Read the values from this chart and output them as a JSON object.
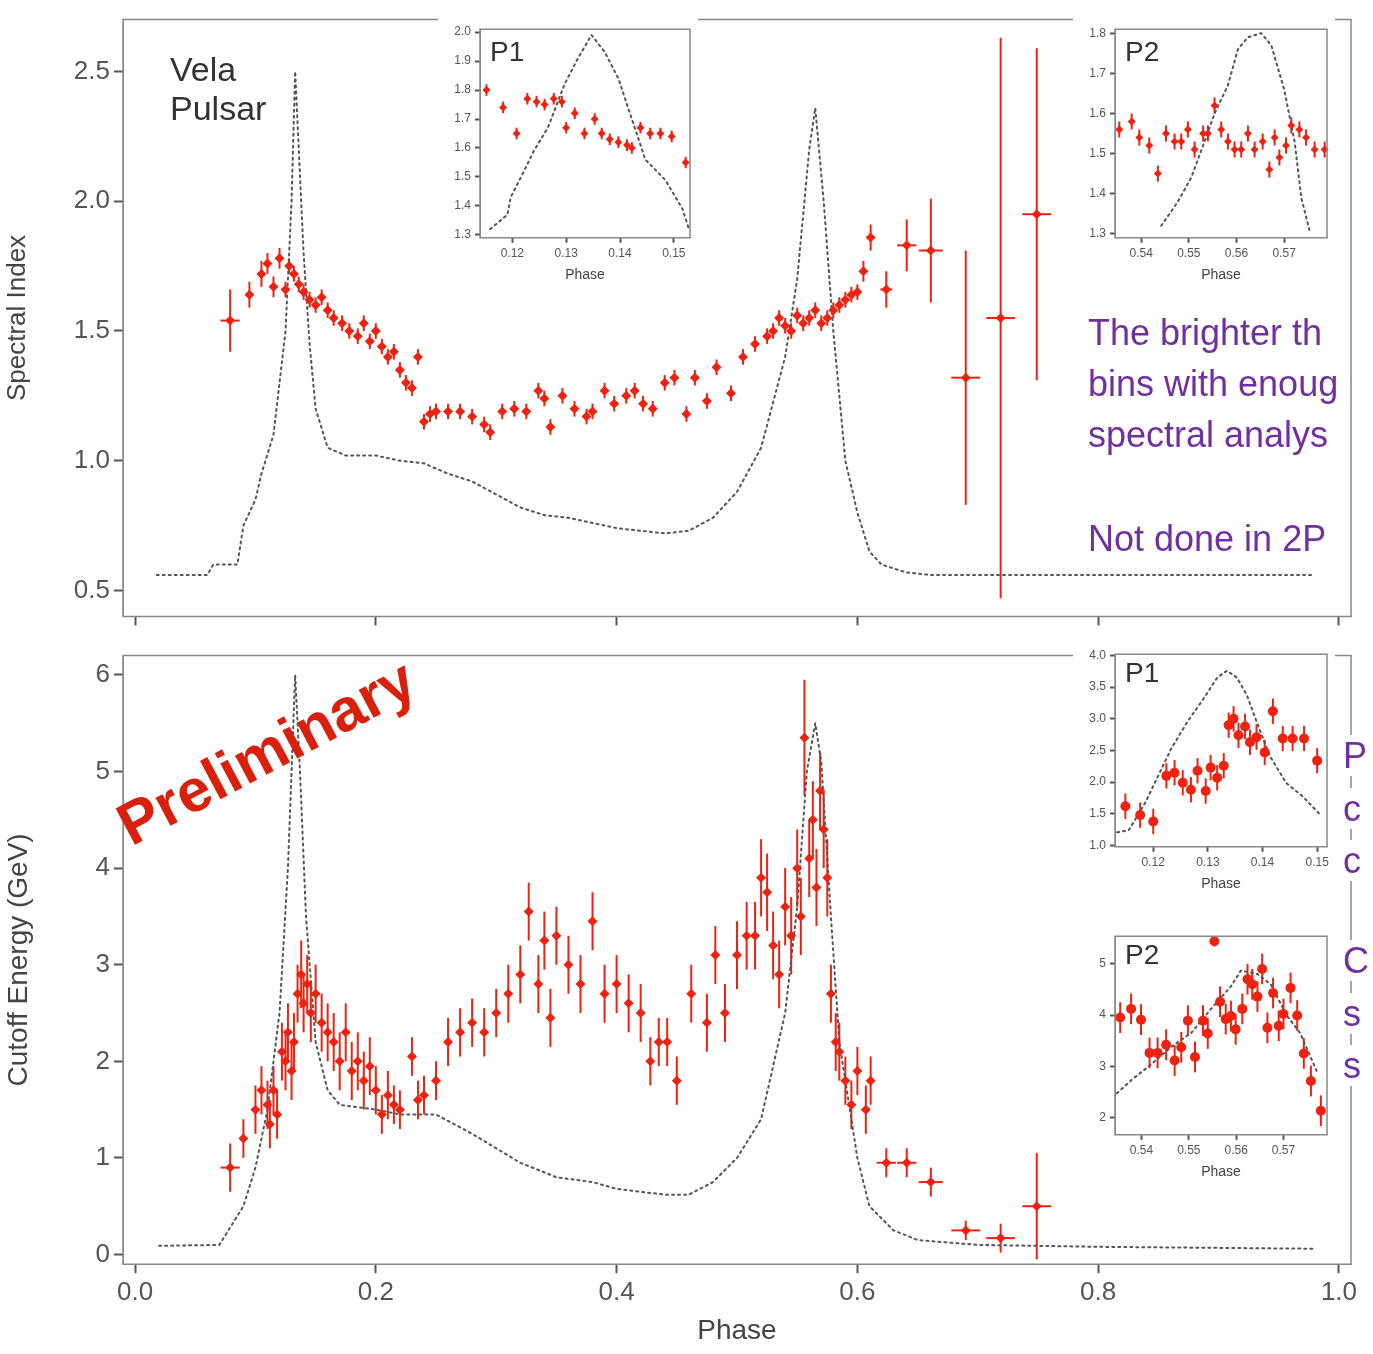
{
  "chart_data": [
    {
      "type": "scatter",
      "ylabel": "Spectral Index",
      "xlim": [
        -0.01,
        1.01
      ],
      "ylim": [
        0.4,
        2.7
      ],
      "xticks": [
        0,
        0.2,
        0.4,
        0.6,
        0.8,
        1
      ],
      "yticks": [
        0.5,
        {
          "value": 1,
          "label": "1.0"
        },
        1.5,
        {
          "value": 2,
          "label": "2.0"
        },
        2.5
      ],
      "tick_labels": "y",
      "annotations": [
        "Vela Pulsar",
        "The brighter th",
        "bins with enoug",
        "spectral analys",
        "Not done in 2P"
      ],
      "series": [
        {
          "type": "scatter",
          "color": "#ee2211",
          "marker": "diamond",
          "x": [
            0.079,
            0.095,
            0.105,
            0.11,
            0.115,
            0.12,
            0.125,
            0.128,
            0.132,
            0.136,
            0.14,
            0.145,
            0.15,
            0.155,
            0.16,
            0.165,
            0.172,
            0.178,
            0.185,
            0.19,
            0.195,
            0.2,
            0.205,
            0.21,
            0.215,
            0.22,
            0.225,
            0.23,
            0.235,
            0.24,
            0.245,
            0.25,
            0.26,
            0.27,
            0.28,
            0.29,
            0.295,
            0.305,
            0.315,
            0.325,
            0.335,
            0.34,
            0.345,
            0.355,
            0.365,
            0.375,
            0.38,
            0.39,
            0.398,
            0.408,
            0.415,
            0.422,
            0.43,
            0.44,
            0.448,
            0.458,
            0.465,
            0.475,
            0.483,
            0.495,
            0.505,
            0.515,
            0.525,
            0.53,
            0.535,
            0.54,
            0.545,
            0.55,
            0.555,
            0.56,
            0.565,
            0.57,
            0.575,
            0.58,
            0.585,
            0.59,
            0.595,
            0.6,
            0.605,
            0.611,
            0.624,
            0.641,
            0.661,
            0.69,
            0.719,
            0.749
          ],
          "values": [
            1.54,
            1.64,
            1.72,
            1.76,
            1.67,
            1.78,
            1.66,
            1.75,
            1.72,
            1.68,
            1.65,
            1.62,
            1.6,
            1.63,
            1.58,
            1.55,
            1.53,
            1.5,
            1.48,
            1.53,
            1.46,
            1.5,
            1.44,
            1.4,
            1.42,
            1.35,
            1.3,
            1.28,
            1.4,
            1.15,
            1.18,
            1.19,
            1.19,
            1.19,
            1.17,
            1.14,
            1.11,
            1.19,
            1.2,
            1.19,
            1.27,
            1.24,
            1.13,
            1.25,
            1.2,
            1.17,
            1.19,
            1.27,
            1.22,
            1.25,
            1.27,
            1.22,
            1.2,
            1.3,
            1.32,
            1.18,
            1.32,
            1.23,
            1.36,
            1.26,
            1.4,
            1.45,
            1.48,
            1.5,
            1.55,
            1.52,
            1.5,
            1.56,
            1.53,
            1.55,
            1.58,
            1.53,
            1.55,
            1.58,
            1.6,
            1.62,
            1.64,
            1.65,
            1.73,
            1.86,
            1.66,
            1.83,
            1.81,
            1.32,
            1.55,
            1.95
          ],
          "errors": [
            0.12,
            0.05,
            0.05,
            0.04,
            0.04,
            0.04,
            0.03,
            0.03,
            0.03,
            0.03,
            0.03,
            0.03,
            0.03,
            0.03,
            0.03,
            0.03,
            0.03,
            0.03,
            0.03,
            0.03,
            0.03,
            0.03,
            0.03,
            0.03,
            0.03,
            0.03,
            0.03,
            0.03,
            0.03,
            0.03,
            0.03,
            0.03,
            0.03,
            0.03,
            0.03,
            0.03,
            0.03,
            0.03,
            0.03,
            0.03,
            0.03,
            0.03,
            0.03,
            0.03,
            0.03,
            0.03,
            0.03,
            0.03,
            0.03,
            0.03,
            0.03,
            0.03,
            0.03,
            0.03,
            0.03,
            0.03,
            0.03,
            0.03,
            0.03,
            0.03,
            0.03,
            0.03,
            0.03,
            0.03,
            0.03,
            0.03,
            0.03,
            0.03,
            0.03,
            0.03,
            0.03,
            0.03,
            0.03,
            0.03,
            0.03,
            0.03,
            0.03,
            0.03,
            0.04,
            0.05,
            0.07,
            0.1,
            0.2,
            0.49,
            1.08,
            0.64
          ],
          "xerrors": [
            0.008,
            0.003,
            0.003,
            0.003,
            0.003,
            0.003,
            0.003,
            0.003,
            0.003,
            0.003,
            0.003,
            0.003,
            0.003,
            0.003,
            0.003,
            0.003,
            0.003,
            0.003,
            0.003,
            0.003,
            0.003,
            0.003,
            0.003,
            0.003,
            0.003,
            0.003,
            0.003,
            0.003,
            0.003,
            0.003,
            0.003,
            0.003,
            0.003,
            0.003,
            0.003,
            0.003,
            0.003,
            0.003,
            0.003,
            0.003,
            0.003,
            0.003,
            0.003,
            0.003,
            0.003,
            0.003,
            0.003,
            0.003,
            0.003,
            0.003,
            0.003,
            0.003,
            0.003,
            0.003,
            0.003,
            0.003,
            0.003,
            0.003,
            0.003,
            0.003,
            0.003,
            0.003,
            0.003,
            0.003,
            0.003,
            0.003,
            0.003,
            0.003,
            0.003,
            0.003,
            0.003,
            0.003,
            0.003,
            0.003,
            0.003,
            0.003,
            0.003,
            0.003,
            0.003,
            0.003,
            0.005,
            0.008,
            0.01,
            0.012,
            0.012,
            0.012
          ]
        },
        {
          "type": "line",
          "color": "#555555",
          "marker": "none",
          "line_style": "dotted",
          "x": [
            0.018,
            0.06,
            0.065,
            0.085,
            0.09,
            0.1,
            0.105,
            0.115,
            0.125,
            0.13,
            0.133,
            0.14,
            0.145,
            0.15,
            0.16,
            0.175,
            0.2,
            0.22,
            0.24,
            0.26,
            0.28,
            0.3,
            0.32,
            0.34,
            0.36,
            0.38,
            0.4,
            0.42,
            0.44,
            0.46,
            0.48,
            0.5,
            0.52,
            0.54,
            0.55,
            0.56,
            0.565,
            0.572,
            0.58,
            0.59,
            0.6,
            0.61,
            0.62,
            0.64,
            0.66,
            0.7,
            0.8,
            0.98
          ],
          "values": [
            0.56,
            0.56,
            0.6,
            0.6,
            0.75,
            0.85,
            0.95,
            1.1,
            1.5,
            2.0,
            2.5,
            1.8,
            1.45,
            1.2,
            1.05,
            1.02,
            1.02,
            1.0,
            0.99,
            0.95,
            0.92,
            0.87,
            0.82,
            0.79,
            0.78,
            0.76,
            0.74,
            0.73,
            0.72,
            0.73,
            0.78,
            0.88,
            1.05,
            1.4,
            1.7,
            2.2,
            2.36,
            2.0,
            1.5,
            1.0,
            0.8,
            0.65,
            0.6,
            0.57,
            0.56,
            0.56,
            0.56,
            0.56
          ]
        }
      ]
    },
    {
      "type": "scatter",
      "xlabel": "Phase",
      "xlim": [
        0.114,
        0.153
      ],
      "ylim": [
        1.29,
        2.01
      ],
      "xticks": [
        0.12,
        0.13,
        0.14,
        0.15
      ],
      "yticks": [
        1.3,
        1.4,
        1.5,
        1.6,
        1.7,
        1.8,
        1.9,
        {
          "value": 2,
          "label": "2.0"
        }
      ],
      "annotations": [
        "P1"
      ],
      "series": [
        {
          "type": "scatter",
          "color": "#ee2211",
          "marker": "diamond",
          "x": [
            0.1152,
            0.1183,
            0.1208,
            0.1228,
            0.1245,
            0.126,
            0.1277,
            0.1292,
            0.13,
            0.1316,
            0.1334,
            0.1353,
            0.1366,
            0.1381,
            0.1397,
            0.1413,
            0.1422,
            0.1438,
            0.1456,
            0.1475,
            0.1496,
            0.1522
          ],
          "values": [
            1.8,
            1.74,
            1.65,
            1.77,
            1.76,
            1.75,
            1.77,
            1.76,
            1.67,
            1.72,
            1.65,
            1.7,
            1.65,
            1.63,
            1.62,
            1.61,
            1.6,
            1.67,
            1.65,
            1.65,
            1.64,
            1.55
          ],
          "errors": [
            0.02,
            0.02,
            0.02,
            0.02,
            0.02,
            0.02,
            0.02,
            0.02,
            0.02,
            0.02,
            0.02,
            0.02,
            0.02,
            0.02,
            0.02,
            0.02,
            0.02,
            0.02,
            0.02,
            0.02,
            0.02,
            0.02
          ]
        },
        {
          "type": "line",
          "color": "#555555",
          "marker": "none",
          "line_style": "dotted",
          "x": [
            0.1159,
            0.1191,
            0.1197,
            0.1219,
            0.124,
            0.1266,
            0.1297,
            0.1322,
            0.1347,
            0.1372,
            0.1397,
            0.1422,
            0.1447,
            0.1484,
            0.1516,
            0.1528
          ],
          "values": [
            1.32,
            1.37,
            1.43,
            1.51,
            1.59,
            1.67,
            1.82,
            1.91,
            1.99,
            1.93,
            1.84,
            1.7,
            1.56,
            1.49,
            1.39,
            1.32
          ]
        }
      ]
    },
    {
      "type": "scatter",
      "xlabel": "Phase",
      "xlim": [
        0.5345,
        0.579
      ],
      "ylim": [
        1.29,
        1.81
      ],
      "xticks": [
        0.54,
        0.55,
        0.56,
        0.57
      ],
      "yticks": [
        1.3,
        1.4,
        1.5,
        1.6,
        1.7,
        1.8
      ],
      "annotations": [
        "P2"
      ],
      "series": [
        {
          "type": "scatter",
          "color": "#ee2211",
          "marker": "diamond",
          "x": [
            0.5354,
            0.538,
            0.5396,
            0.5417,
            0.5435,
            0.5452,
            0.547,
            0.5484,
            0.5498,
            0.5512,
            0.553,
            0.554,
            0.5554,
            0.5568,
            0.5582,
            0.5596,
            0.561,
            0.5624,
            0.5638,
            0.5655,
            0.5669,
            0.568,
            0.569,
            0.5704,
            0.5715,
            0.5732,
            0.5746,
            0.5764,
            0.5785
          ],
          "values": [
            1.56,
            1.58,
            1.54,
            1.52,
            1.45,
            1.55,
            1.53,
            1.53,
            1.56,
            1.51,
            1.55,
            1.55,
            1.62,
            1.56,
            1.53,
            1.51,
            1.51,
            1.55,
            1.51,
            1.53,
            1.46,
            1.54,
            1.49,
            1.52,
            1.57,
            1.56,
            1.54,
            1.51,
            1.51
          ],
          "errors": [
            0.02,
            0.02,
            0.02,
            0.02,
            0.02,
            0.02,
            0.02,
            0.02,
            0.02,
            0.02,
            0.02,
            0.02,
            0.02,
            0.02,
            0.02,
            0.02,
            0.02,
            0.02,
            0.02,
            0.02,
            0.02,
            0.02,
            0.02,
            0.02,
            0.02,
            0.02,
            0.02,
            0.02,
            0.02
          ]
        },
        {
          "type": "line",
          "color": "#555555",
          "marker": "none",
          "line_style": "dotted",
          "x": [
            0.5442,
            0.5477,
            0.5505,
            0.5533,
            0.5554,
            0.5582,
            0.5603,
            0.5624,
            0.5652,
            0.5673,
            0.57,
            0.5722,
            0.5736,
            0.5753
          ],
          "values": [
            1.32,
            1.38,
            1.44,
            1.53,
            1.6,
            1.67,
            1.76,
            1.79,
            1.8,
            1.77,
            1.66,
            1.53,
            1.39,
            1.31
          ]
        }
      ]
    },
    {
      "type": "scatter",
      "xlabel": "Phase",
      "ylabel": "Cutoff Energy (GeV)",
      "xlim": [
        -0.01,
        1.01
      ],
      "ylim": [
        -0.1,
        6.2
      ],
      "xticks": [
        {
          "value": 0,
          "label": "0.0"
        },
        0.2,
        0.4,
        0.6,
        0.8,
        {
          "value": 1,
          "label": "1.0"
        }
      ],
      "yticks": [
        0,
        1,
        2,
        3,
        4,
        5,
        6
      ],
      "annotations": [
        "Preliminary",
        "P",
        "c",
        "c",
        "C",
        "s",
        "s"
      ],
      "series": [
        {
          "type": "scatter",
          "color": "#ee2211",
          "marker": "diamond",
          "x": [
            0.079,
            0.09,
            0.1,
            0.105,
            0.11,
            0.112,
            0.115,
            0.118,
            0.122,
            0.125,
            0.127,
            0.13,
            0.132,
            0.135,
            0.138,
            0.14,
            0.143,
            0.146,
            0.15,
            0.155,
            0.16,
            0.165,
            0.17,
            0.175,
            0.18,
            0.185,
            0.19,
            0.195,
            0.2,
            0.205,
            0.21,
            0.215,
            0.22,
            0.23,
            0.235,
            0.24,
            0.25,
            0.26,
            0.27,
            0.28,
            0.29,
            0.3,
            0.31,
            0.32,
            0.327,
            0.335,
            0.34,
            0.345,
            0.35,
            0.36,
            0.37,
            0.38,
            0.39,
            0.4,
            0.41,
            0.42,
            0.428,
            0.435,
            0.442,
            0.45,
            0.462,
            0.475,
            0.482,
            0.49,
            0.5,
            0.508,
            0.515,
            0.52,
            0.525,
            0.53,
            0.535,
            0.54,
            0.545,
            0.55,
            0.553,
            0.556,
            0.56,
            0.563,
            0.566,
            0.569,
            0.572,
            0.575,
            0.578,
            0.582,
            0.585,
            0.59,
            0.595,
            0.6,
            0.607,
            0.611,
            0.624,
            0.641,
            0.661,
            0.69,
            0.719,
            0.749
          ],
          "values": [
            0.9,
            1.2,
            1.5,
            1.7,
            1.55,
            1.35,
            1.7,
            1.45,
            2.1,
            2.0,
            2.3,
            1.9,
            2.2,
            2.7,
            2.9,
            2.6,
            2.8,
            2.5,
            2.7,
            2.4,
            2.3,
            2.2,
            2.0,
            2.3,
            1.9,
            2.0,
            1.8,
            1.95,
            1.7,
            1.45,
            1.65,
            1.55,
            1.5,
            2.05,
            1.6,
            1.65,
            1.8,
            2.2,
            2.3,
            2.4,
            2.3,
            2.5,
            2.7,
            2.9,
            3.55,
            2.8,
            3.25,
            2.45,
            3.3,
            3.0,
            2.8,
            3.45,
            2.7,
            2.8,
            2.6,
            2.5,
            2.0,
            2.2,
            2.2,
            1.8,
            2.7,
            2.4,
            3.1,
            2.5,
            3.1,
            3.3,
            3.3,
            3.9,
            3.75,
            3.2,
            2.9,
            3.6,
            3.3,
            4.0,
            3.5,
            5.35,
            4.1,
            4.5,
            3.8,
            4.8,
            4.4,
            3.9,
            2.7,
            2.2,
            2.1,
            1.8,
            1.55,
            1.9,
            1.5,
            1.8,
            0.95,
            0.95,
            0.75,
            0.25,
            0.17,
            0.5
          ],
          "errors": [
            0.25,
            0.2,
            0.25,
            0.25,
            0.25,
            0.25,
            0.25,
            0.25,
            0.3,
            0.3,
            0.3,
            0.3,
            0.3,
            0.3,
            0.35,
            0.3,
            0.3,
            0.3,
            0.3,
            0.3,
            0.3,
            0.3,
            0.3,
            0.3,
            0.3,
            0.3,
            0.3,
            0.3,
            0.25,
            0.2,
            0.25,
            0.2,
            0.2,
            0.2,
            0.2,
            0.2,
            0.2,
            0.25,
            0.25,
            0.25,
            0.25,
            0.25,
            0.3,
            0.3,
            0.3,
            0.3,
            0.3,
            0.3,
            0.3,
            0.3,
            0.3,
            0.3,
            0.3,
            0.3,
            0.3,
            0.3,
            0.25,
            0.25,
            0.25,
            0.25,
            0.3,
            0.3,
            0.3,
            0.3,
            0.35,
            0.35,
            0.35,
            0.4,
            0.4,
            0.35,
            0.35,
            0.4,
            0.4,
            0.4,
            0.4,
            0.6,
            0.4,
            0.4,
            0.4,
            0.4,
            0.4,
            0.4,
            0.3,
            0.3,
            0.3,
            0.25,
            0.25,
            0.25,
            0.25,
            0.25,
            0.15,
            0.15,
            0.15,
            0.1,
            0.15,
            0.55
          ],
          "xerrors": [
            0.008,
            0.003,
            0.003,
            0.003,
            0.003,
            0.003,
            0.003,
            0.003,
            0.003,
            0.003,
            0.003,
            0.003,
            0.003,
            0.003,
            0.003,
            0.003,
            0.003,
            0.003,
            0.003,
            0.003,
            0.003,
            0.003,
            0.003,
            0.003,
            0.003,
            0.003,
            0.003,
            0.003,
            0.003,
            0.003,
            0.003,
            0.003,
            0.003,
            0.003,
            0.003,
            0.003,
            0.003,
            0.003,
            0.003,
            0.003,
            0.003,
            0.003,
            0.003,
            0.003,
            0.003,
            0.003,
            0.003,
            0.003,
            0.003,
            0.003,
            0.003,
            0.003,
            0.003,
            0.003,
            0.003,
            0.003,
            0.003,
            0.003,
            0.003,
            0.003,
            0.003,
            0.003,
            0.003,
            0.003,
            0.003,
            0.003,
            0.003,
            0.003,
            0.003,
            0.003,
            0.003,
            0.003,
            0.003,
            0.003,
            0.003,
            0.003,
            0.003,
            0.003,
            0.003,
            0.003,
            0.003,
            0.003,
            0.003,
            0.003,
            0.003,
            0.003,
            0.003,
            0.003,
            0.003,
            0.003,
            0.008,
            0.008,
            0.01,
            0.012,
            0.012,
            0.012
          ]
        },
        {
          "type": "line",
          "color": "#555555",
          "marker": "none",
          "line_style": "dotted",
          "x": [
            0.02,
            0.07,
            0.075,
            0.09,
            0.1,
            0.11,
            0.12,
            0.127,
            0.133,
            0.137,
            0.142,
            0.15,
            0.16,
            0.17,
            0.2,
            0.22,
            0.25,
            0.28,
            0.3,
            0.32,
            0.35,
            0.38,
            0.4,
            0.44,
            0.46,
            0.48,
            0.5,
            0.52,
            0.54,
            0.55,
            0.558,
            0.565,
            0.57,
            0.578,
            0.585,
            0.6,
            0.61,
            0.63,
            0.65,
            0.7,
            0.8,
            0.98
          ],
          "values": [
            0.09,
            0.1,
            0.2,
            0.5,
            0.9,
            1.5,
            2.5,
            4.0,
            6.0,
            5.0,
            3.5,
            2.2,
            1.7,
            1.55,
            1.5,
            1.45,
            1.45,
            1.25,
            1.1,
            0.95,
            0.8,
            0.75,
            0.68,
            0.62,
            0.62,
            0.75,
            1.0,
            1.4,
            2.5,
            3.6,
            5.0,
            5.5,
            5.1,
            3.5,
            2.2,
            1.0,
            0.5,
            0.25,
            0.15,
            0.1,
            0.08,
            0.06
          ]
        }
      ]
    },
    {
      "type": "scatter",
      "xlabel": "Phase",
      "xlim": [
        0.113,
        0.1518
      ],
      "ylim": [
        0.98,
        4.02
      ],
      "xticks": [
        0.12,
        0.13,
        0.14,
        0.15
      ],
      "yticks": [
        {
          "value": 1,
          "label": "1.0"
        },
        1.5,
        {
          "value": 2,
          "label": "2.0"
        },
        2.5,
        {
          "value": 3,
          "label": "3.0"
        },
        3.5,
        {
          "value": 4,
          "label": "4.0"
        }
      ],
      "annotations": [
        "P1"
      ],
      "series": [
        {
          "type": "scatter",
          "color": "#ee2211",
          "marker": "circle",
          "x": [
            0.1149,
            0.1176,
            0.12,
            0.1224,
            0.1239,
            0.1254,
            0.1269,
            0.1281,
            0.1296,
            0.1305,
            0.1317,
            0.1329,
            0.1338,
            0.1347,
            0.1356,
            0.1368,
            0.1377,
            0.1389,
            0.1404,
            0.1419,
            0.1437,
            0.1455,
            0.1476,
            0.15
          ],
          "values": [
            1.62,
            1.48,
            1.38,
            2.1,
            2.15,
            1.99,
            1.88,
            2.18,
            1.86,
            2.23,
            2.07,
            2.26,
            2.9,
            3.0,
            2.74,
            2.88,
            2.63,
            2.71,
            2.47,
            3.12,
            2.69,
            2.69,
            2.69,
            2.34
          ],
          "errors": [
            0.2,
            0.2,
            0.2,
            0.2,
            0.2,
            0.2,
            0.2,
            0.2,
            0.2,
            0.2,
            0.2,
            0.2,
            0.2,
            0.2,
            0.2,
            0.2,
            0.2,
            0.2,
            0.2,
            0.2,
            0.2,
            0.2,
            0.2,
            0.2
          ]
        },
        {
          "type": "line",
          "color": "#555555",
          "marker": "none",
          "line_style": "dotted",
          "x": [
            0.1134,
            0.1155,
            0.1185,
            0.1209,
            0.1233,
            0.1263,
            0.1293,
            0.1317,
            0.1335,
            0.1353,
            0.1371,
            0.1389,
            0.1413,
            0.1443,
            0.1473,
            0.1503
          ],
          "values": [
            1.21,
            1.24,
            1.67,
            2.1,
            2.53,
            2.96,
            3.33,
            3.65,
            3.76,
            3.65,
            3.38,
            2.96,
            2.42,
            1.99,
            1.78,
            1.51
          ]
        }
      ]
    },
    {
      "type": "scatter",
      "xlabel": "Phase",
      "xlim": [
        0.5344,
        0.5792
      ],
      "ylim": [
        1.66,
        5.54
      ],
      "xticks": [
        0.54,
        0.55,
        0.56,
        0.57
      ],
      "yticks": [
        2,
        3,
        4,
        5
      ],
      "annotations": [
        "P2"
      ],
      "series": [
        {
          "type": "scatter",
          "color": "#ee2211",
          "marker": "circle",
          "x": [
            0.5355,
            0.5378,
            0.5399,
            0.5417,
            0.5434,
            0.5452,
            0.547,
            0.5484,
            0.5498,
            0.5513,
            0.553,
            0.554,
            0.5554,
            0.5566,
            0.5578,
            0.5589,
            0.5599,
            0.5613,
            0.5624,
            0.5634,
            0.5645,
            0.5655,
            0.5666,
            0.5678,
            0.569,
            0.57,
            0.5715,
            0.5729,
            0.5743,
            0.5758,
            0.5779
          ],
          "values": [
            3.95,
            4.12,
            3.91,
            3.26,
            3.26,
            3.42,
            3.11,
            3.37,
            3.89,
            3.18,
            3.89,
            3.64,
            5.44,
            4.26,
            3.92,
            3.98,
            3.72,
            4.12,
            4.7,
            4.6,
            4.36,
            4.9,
            3.75,
            4.43,
            3.79,
            4.02,
            4.53,
            3.99,
            3.25,
            2.71,
            2.13
          ],
          "errors": [
            0.3,
            0.3,
            0.3,
            0.3,
            0.3,
            0.3,
            0.3,
            0.3,
            0.3,
            0.3,
            0.3,
            0.3,
            0.1,
            0.3,
            0.3,
            0.3,
            0.3,
            0.3,
            0.3,
            0.3,
            0.3,
            0.3,
            0.3,
            0.3,
            0.3,
            0.3,
            0.3,
            0.3,
            0.3,
            0.3,
            0.3
          ]
        },
        {
          "type": "line",
          "color": "#555555",
          "marker": "none",
          "line_style": "dotted",
          "x": [
            0.5348,
            0.538,
            0.5421,
            0.5463,
            0.5505,
            0.5547,
            0.5589,
            0.561,
            0.5645,
            0.5673,
            0.5707,
            0.5735,
            0.577
          ],
          "values": [
            2.47,
            2.74,
            3.04,
            3.38,
            3.65,
            4.12,
            4.56,
            4.87,
            4.8,
            4.6,
            3.99,
            3.65,
            2.91
          ]
        }
      ]
    }
  ]
}
